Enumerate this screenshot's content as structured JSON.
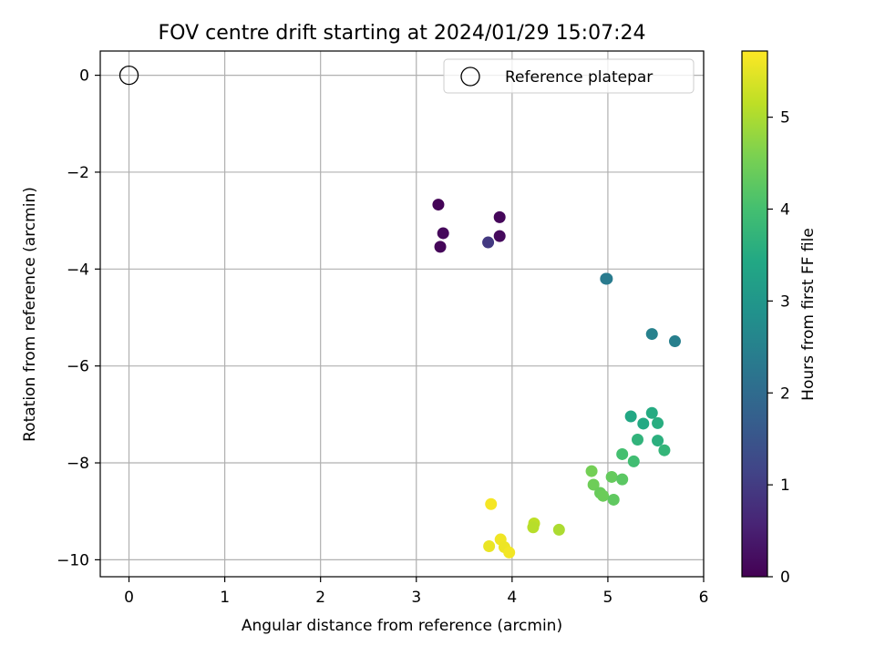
{
  "chart_data": {
    "type": "scatter",
    "title": "FOV centre drift starting at 2024/01/29 15:07:24",
    "xlabel": "Angular distance from reference (arcmin)",
    "ylabel": "Rotation from reference (arcmin)",
    "xlim": [
      -0.3,
      6.0
    ],
    "ylim": [
      -10.35,
      0.5
    ],
    "xticks": [
      0,
      1,
      2,
      3,
      4,
      5,
      6
    ],
    "yticks": [
      0,
      -2,
      -4,
      -6,
      -8,
      -10
    ],
    "grid": true,
    "legend": {
      "placement": "top-right",
      "entries": [
        "Reference platepar"
      ]
    },
    "reference": {
      "label": "Reference platepar",
      "x": 0,
      "y": 0
    },
    "colorbar": {
      "label": "Hours from first FF file",
      "range": [
        0,
        5.72
      ],
      "ticks": [
        0,
        1,
        2,
        3,
        4,
        5
      ],
      "colormap": "viridis"
    },
    "points": [
      {
        "x": 3.23,
        "y": -2.67,
        "c": 0.05
      },
      {
        "x": 3.87,
        "y": -2.93,
        "c": 0.1
      },
      {
        "x": 3.28,
        "y": -3.26,
        "c": 0.12
      },
      {
        "x": 3.87,
        "y": -3.32,
        "c": 0.15
      },
      {
        "x": 3.25,
        "y": -3.54,
        "c": 0.08
      },
      {
        "x": 3.75,
        "y": -3.45,
        "c": 0.95
      },
      {
        "x": 4.98,
        "y": -4.2,
        "c": 2.3
      },
      {
        "x": 4.99,
        "y": -4.2,
        "c": 2.35
      },
      {
        "x": 5.46,
        "y": -5.34,
        "c": 2.5
      },
      {
        "x": 5.7,
        "y": -5.49,
        "c": 2.45
      },
      {
        "x": 5.24,
        "y": -7.04,
        "c": 3.4
      },
      {
        "x": 5.46,
        "y": -6.97,
        "c": 3.5
      },
      {
        "x": 5.37,
        "y": -7.19,
        "c": 3.45
      },
      {
        "x": 5.52,
        "y": -7.18,
        "c": 3.55
      },
      {
        "x": 5.31,
        "y": -7.52,
        "c": 3.7
      },
      {
        "x": 5.52,
        "y": -7.54,
        "c": 3.6
      },
      {
        "x": 5.59,
        "y": -7.74,
        "c": 3.75
      },
      {
        "x": 5.15,
        "y": -7.82,
        "c": 4.0
      },
      {
        "x": 5.27,
        "y": -7.97,
        "c": 3.95
      },
      {
        "x": 4.83,
        "y": -8.17,
        "c": 4.5
      },
      {
        "x": 5.04,
        "y": -8.29,
        "c": 4.35
      },
      {
        "x": 5.15,
        "y": -8.34,
        "c": 4.25
      },
      {
        "x": 4.85,
        "y": -8.45,
        "c": 4.45
      },
      {
        "x": 4.92,
        "y": -8.62,
        "c": 4.4
      },
      {
        "x": 4.95,
        "y": -8.68,
        "c": 4.42
      },
      {
        "x": 5.06,
        "y": -8.76,
        "c": 4.3
      },
      {
        "x": 3.78,
        "y": -8.85,
        "c": 5.65
      },
      {
        "x": 4.23,
        "y": -9.25,
        "c": 5.15
      },
      {
        "x": 4.22,
        "y": -9.33,
        "c": 5.1
      },
      {
        "x": 4.49,
        "y": -9.38,
        "c": 5.0
      },
      {
        "x": 3.88,
        "y": -9.58,
        "c": 5.6
      },
      {
        "x": 3.76,
        "y": -9.72,
        "c": 5.55
      },
      {
        "x": 3.92,
        "y": -9.74,
        "c": 5.58
      },
      {
        "x": 3.97,
        "y": -9.85,
        "c": 5.62
      }
    ]
  }
}
